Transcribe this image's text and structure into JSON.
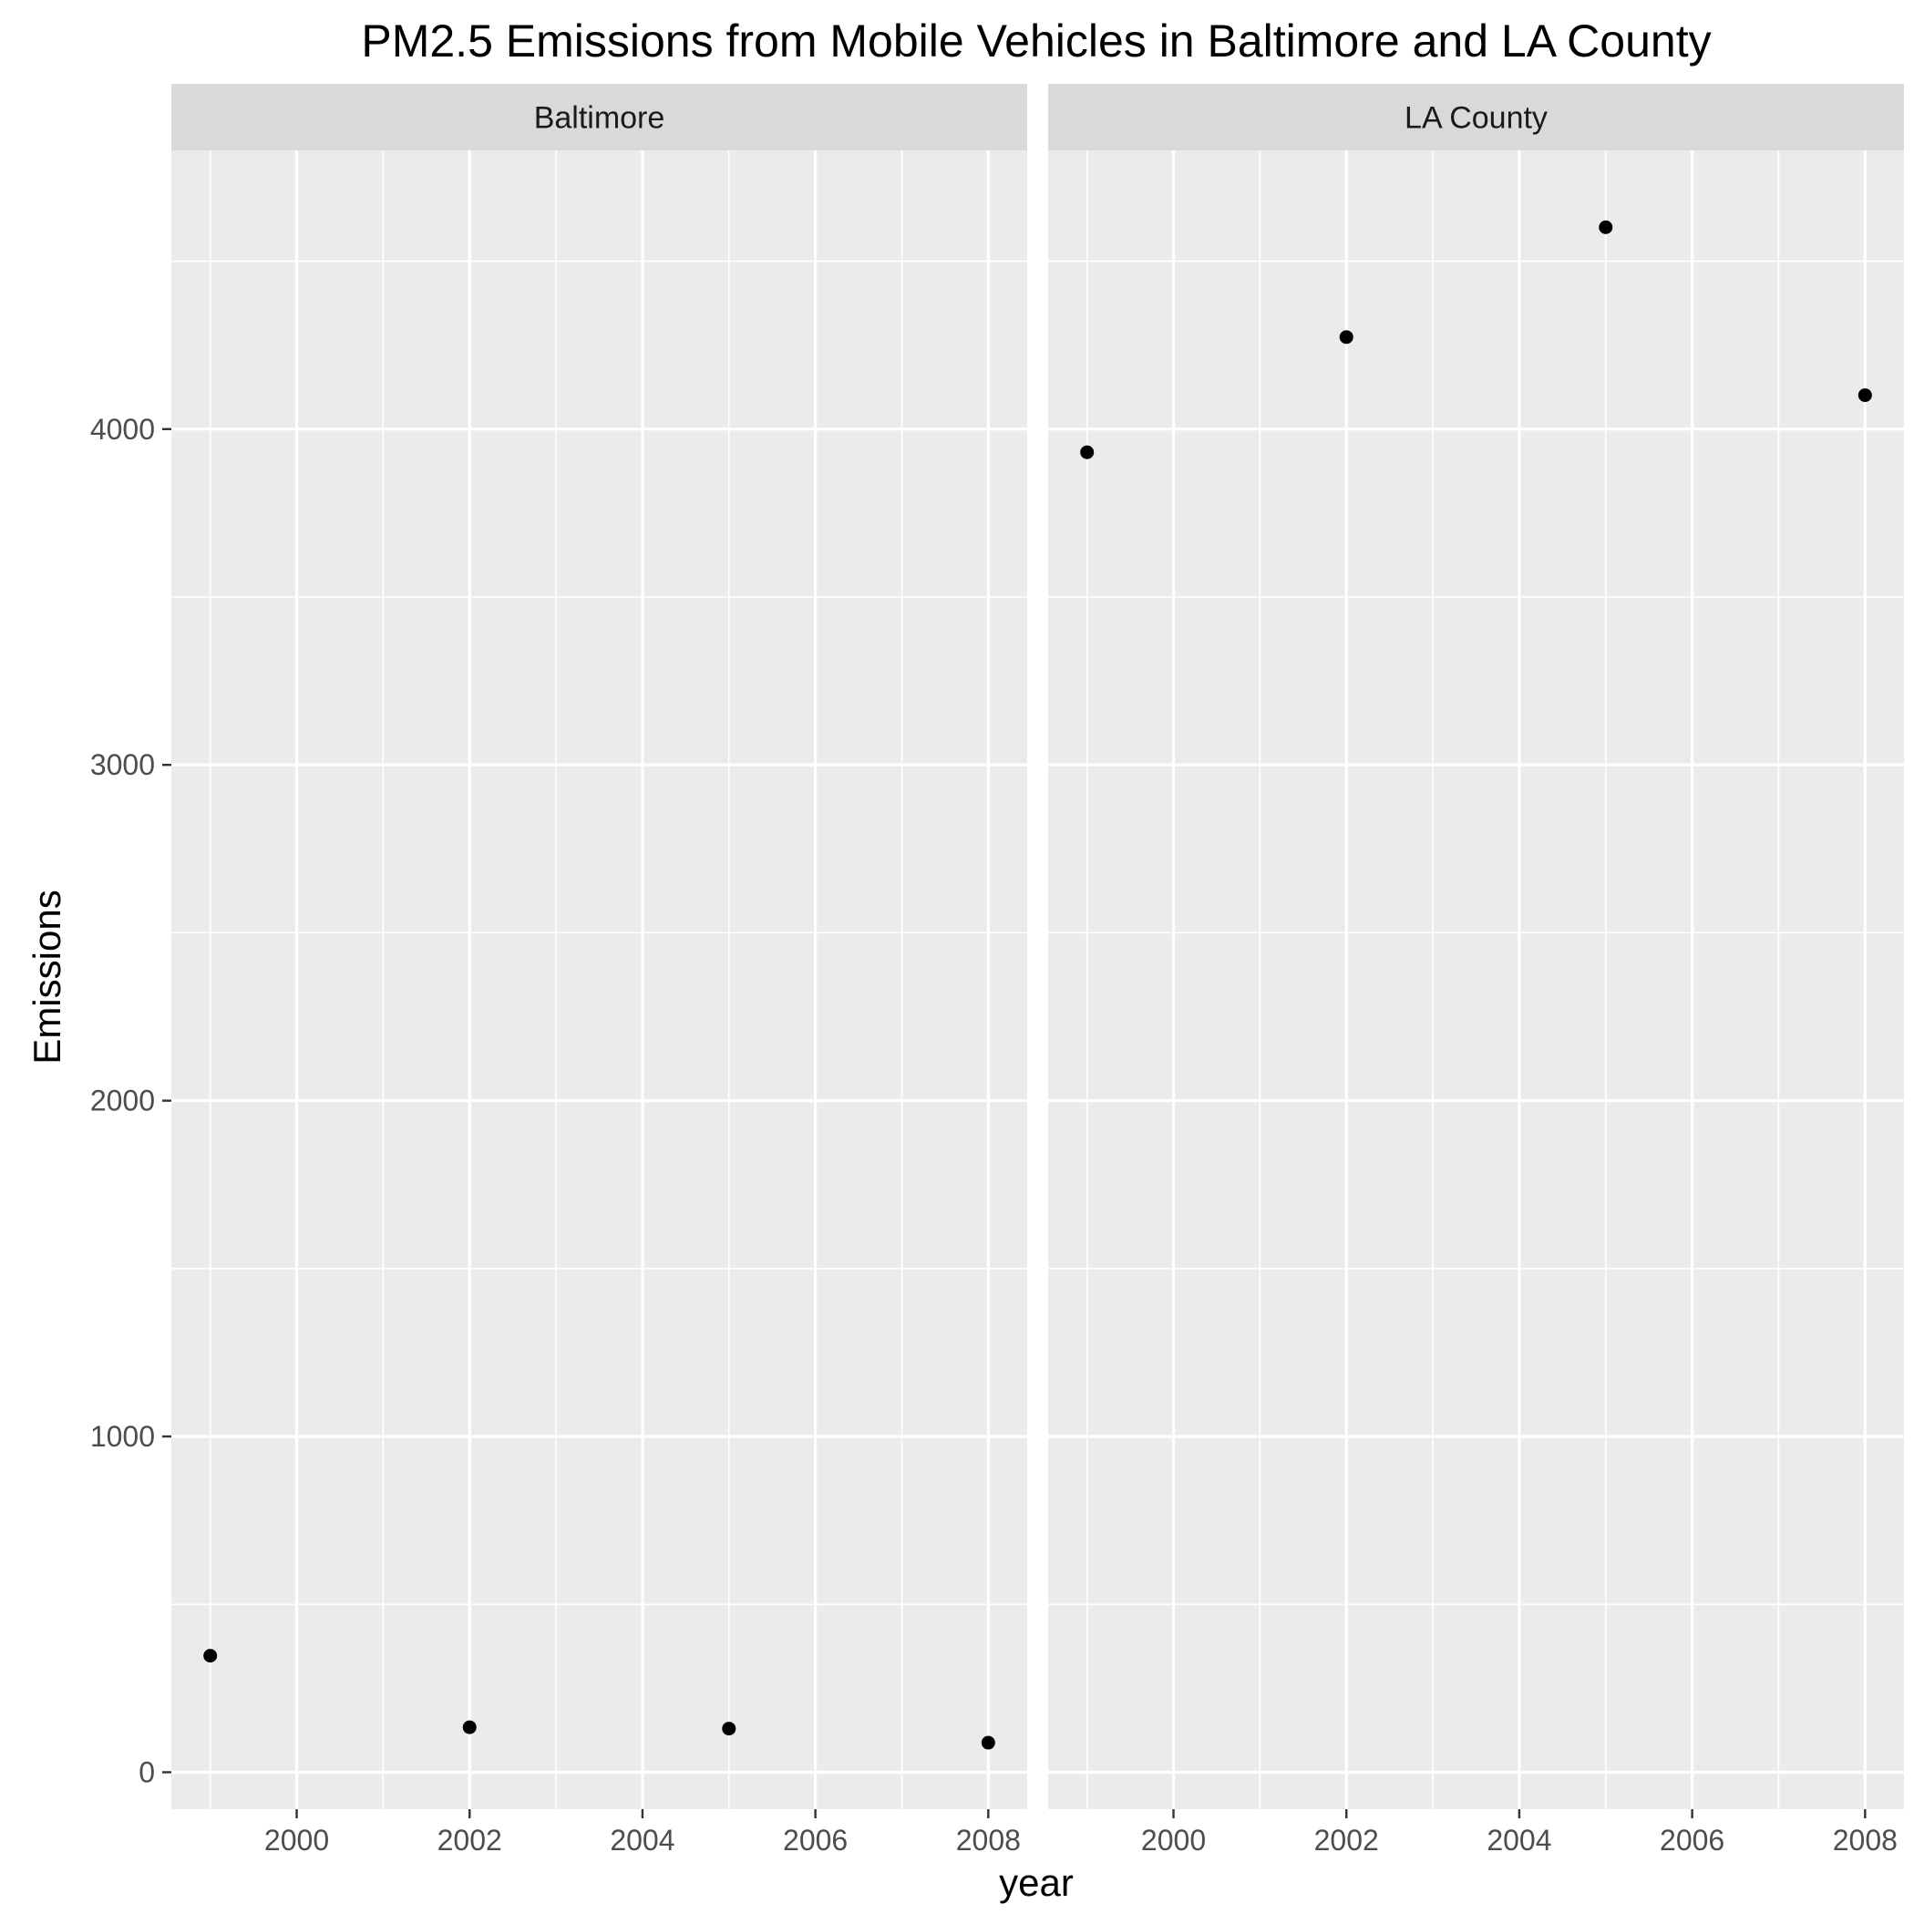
{
  "chart_data": {
    "type": "scatter",
    "title": "PM2.5 Emissions from Mobile Vehicles in Baltimore and LA County",
    "xlabel": "year",
    "ylabel": "Emissions",
    "xlim": [
      1998.55,
      2008.45
    ],
    "ylim": [
      -110,
      4830
    ],
    "x_ticks": [
      2000,
      2002,
      2004,
      2006,
      2008
    ],
    "y_ticks": [
      0,
      1000,
      2000,
      3000,
      4000
    ],
    "grid": true,
    "point_color": "#000000",
    "panel_background": "#ebebeb",
    "strip_background": "#d9d9d9",
    "facets": [
      {
        "name": "Baltimore",
        "x": [
          1999,
          2002,
          2005,
          2008
        ],
        "y": [
          347,
          134,
          130,
          88
        ]
      },
      {
        "name": "LA County",
        "x": [
          1999,
          2002,
          2005,
          2008
        ],
        "y": [
          3931,
          4274,
          4601,
          4101
        ]
      }
    ]
  }
}
